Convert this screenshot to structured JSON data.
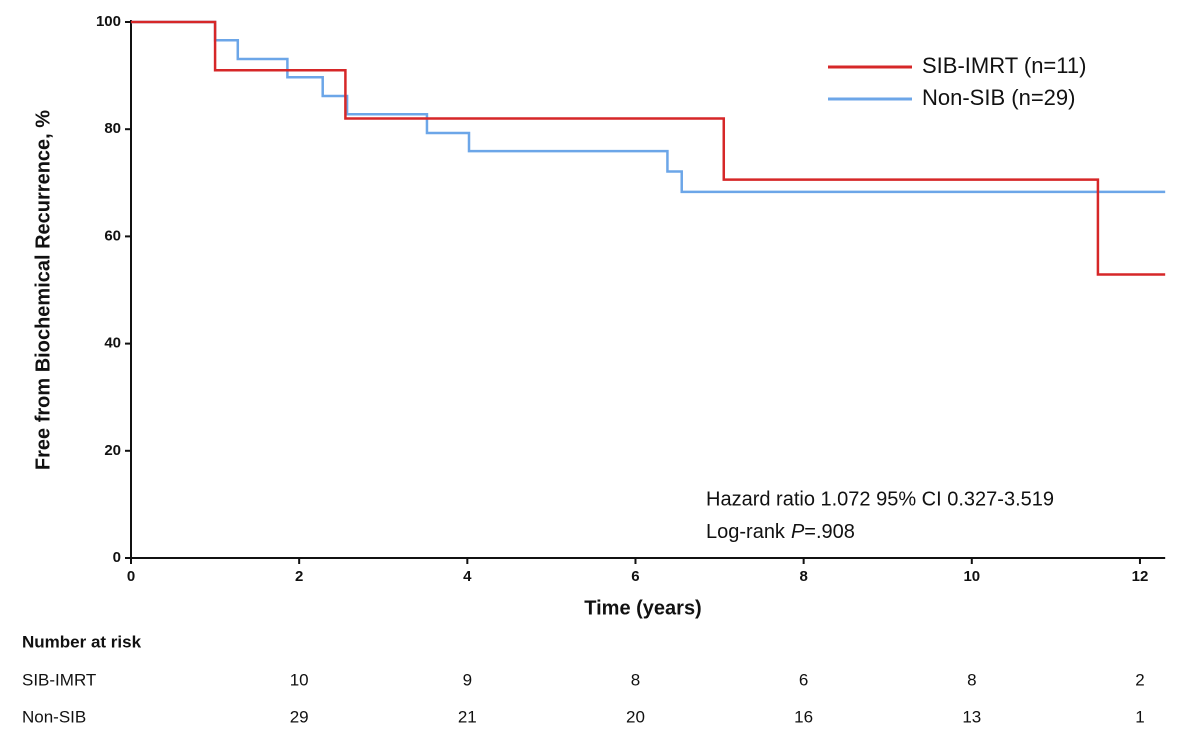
{
  "chart_data": {
    "type": "line",
    "step": "post",
    "xlabel": "Time (years)",
    "ylabel": "Free from Biochemical Recurrence, %",
    "xlim": [
      0,
      12.3
    ],
    "ylim": [
      0,
      100
    ],
    "xticks": [
      0,
      2,
      4,
      6,
      8,
      10,
      12
    ],
    "yticks": [
      0,
      20,
      40,
      60,
      80,
      100
    ],
    "legend": "top-right",
    "series": [
      {
        "name": "SIB-IMRT (n=11)",
        "color": "#d62728",
        "x": [
          0,
          1.0,
          2.55,
          7.05,
          11.5,
          12.3
        ],
        "values": [
          100,
          91,
          82,
          70.6,
          52.9,
          52.9
        ]
      },
      {
        "name": "Non-SIB (n=29)",
        "color": "#6ca6e8",
        "x": [
          0,
          1.0,
          1.27,
          1.86,
          2.28,
          2.57,
          3.52,
          4.02,
          6.38,
          6.55,
          12.3
        ],
        "values": [
          100,
          96.6,
          93.1,
          89.7,
          86.2,
          82.8,
          79.3,
          75.9,
          72.1,
          68.3,
          68.3
        ]
      }
    ],
    "annotation": {
      "hazard": "Hazard ratio 1.072 95% CI 0.327-3.519",
      "logrank": "Log-rank",
      "p": "P",
      "p_value": "=.908"
    },
    "risk_table": {
      "title": "Number at risk",
      "rows": [
        {
          "name": "SIB-IMRT",
          "values": [
            10,
            9,
            8,
            6,
            8,
            2
          ]
        },
        {
          "name": "Non-SIB",
          "values": [
            29,
            21,
            20,
            16,
            13,
            1
          ]
        }
      ]
    }
  }
}
